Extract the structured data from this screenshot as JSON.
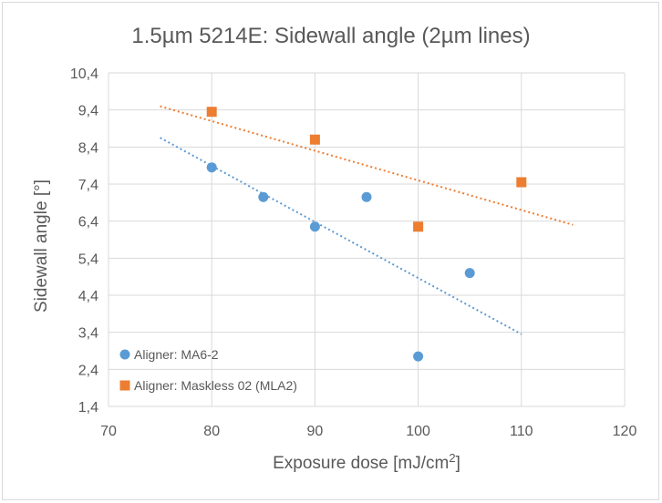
{
  "chart_data": {
    "type": "scatter",
    "title": "1.5µm 5214E: Sidewall angle (2µm lines)",
    "xlabel": "Exposure dose [mJ/cm",
    "xlabel_sup": "2",
    "xlabel_end": "]",
    "ylabel": "Sidewall angle [°]",
    "xlim": [
      70,
      120
    ],
    "ylim": [
      1.4,
      10.4
    ],
    "x_ticks": [
      70,
      80,
      90,
      100,
      110,
      120
    ],
    "y_ticks": [
      1.4,
      2.4,
      3.4,
      4.4,
      5.4,
      6.4,
      7.4,
      8.4,
      9.4,
      10.4
    ],
    "y_tick_labels": [
      "1,4",
      "2,4",
      "3,4",
      "4,4",
      "5,4",
      "6,4",
      "7,4",
      "8,4",
      "9,4",
      "10,4"
    ],
    "grid": true,
    "legend_position": "bottom-left",
    "series": [
      {
        "name": "Aligner: MA6-2",
        "marker": "circle",
        "color": "#5b9bd5",
        "points": [
          [
            80,
            7.85
          ],
          [
            85,
            7.05
          ],
          [
            90,
            6.25
          ],
          [
            95,
            7.05
          ],
          [
            100,
            2.75
          ],
          [
            105,
            5.0
          ]
        ],
        "trendline": {
          "x": [
            75,
            110
          ],
          "y": [
            8.65,
            3.35
          ]
        }
      },
      {
        "name": "Aligner: Maskless 02 (MLA2)",
        "marker": "square",
        "color": "#ed7d31",
        "points": [
          [
            80,
            9.35
          ],
          [
            90,
            8.6
          ],
          [
            100,
            6.25
          ],
          [
            110,
            7.45
          ]
        ],
        "trendline": {
          "x": [
            75,
            115
          ],
          "y": [
            9.5,
            6.3
          ]
        }
      }
    ]
  }
}
